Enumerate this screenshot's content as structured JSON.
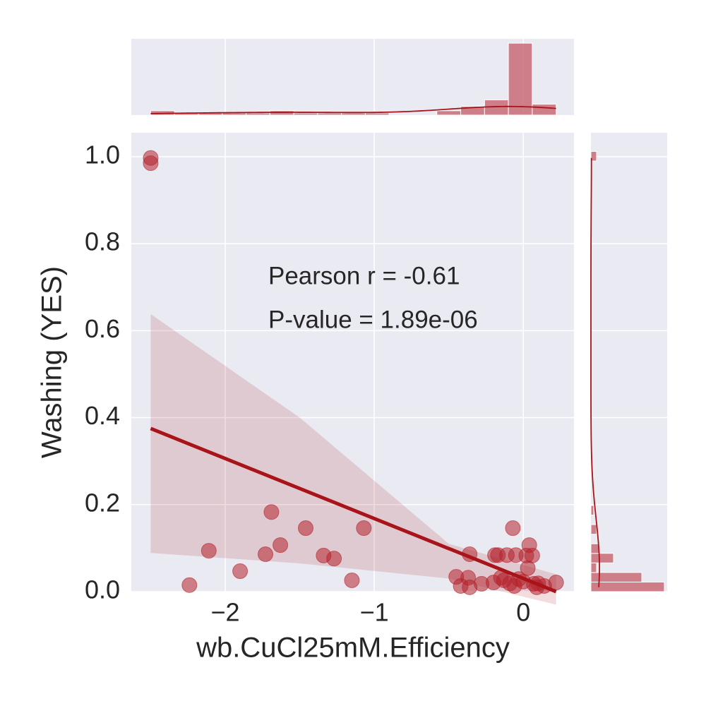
{
  "chart_data": [
    {
      "type": "scatter",
      "xlabel": "wb.CuCl25mM.Efficiency",
      "ylabel": "Washing (YES)",
      "annotations": [
        "Pearson r = -0.61",
        "P-value = 1.89e-06"
      ],
      "color": "#b5222b",
      "x": [
        -2.5,
        -2.5,
        -2.24,
        -2.11,
        -1.9,
        -1.69,
        -1.73,
        -1.63,
        -1.46,
        -1.34,
        -1.27,
        -1.15,
        -1.07,
        -0.36,
        -0.45,
        -0.42,
        -0.37,
        -0.36,
        -0.28,
        -0.17,
        -0.19,
        -0.11,
        -0.07,
        -0.05,
        0.04,
        0.02,
        0.06,
        0.03,
        -0.15,
        -0.13,
        -0.09,
        -0.03,
        0.0,
        0.07,
        0.1,
        0.22,
        -0.2,
        0.14,
        -0.06,
        0.09
      ],
      "values": [
        0.997,
        0.985,
        0.015,
        0.094,
        0.047,
        0.183,
        0.086,
        0.107,
        0.146,
        0.083,
        0.076,
        0.026,
        0.146,
        0.086,
        0.034,
        0.013,
        0.032,
        0.01,
        0.018,
        0.084,
        0.084,
        0.084,
        0.146,
        0.084,
        0.107,
        0.083,
        0.083,
        0.054,
        0.032,
        0.026,
        0.019,
        0.029,
        0.023,
        0.018,
        0.019,
        0.021,
        0.021,
        0.013,
        0.013,
        0.01
      ],
      "fit": {
        "color": "#a81419",
        "x": [
          -2.5,
          -1.5,
          -0.5,
          0.22
        ],
        "values": [
          0.375,
          0.237,
          0.099,
          0.0
        ],
        "ci_lower": [
          0.089,
          0.065,
          0.03,
          -0.03
        ],
        "ci_upper": [
          0.638,
          0.4,
          0.11,
          0.04
        ]
      },
      "xlim": [
        -2.63,
        0.34
      ],
      "ylim": [
        0,
        1.055
      ],
      "xticks": [
        {
          "value": -2,
          "label": "−2"
        },
        {
          "value": -1,
          "label": "−1"
        },
        {
          "value": 0,
          "label": "0"
        }
      ],
      "yticks": [
        {
          "value": 0,
          "label": "0.0"
        },
        0.2,
        0.4,
        0.6,
        0.8,
        {
          "value": 1,
          "label": "1.0"
        }
      ],
      "grid": true
    },
    {
      "type": "histogram",
      "orientation": "vertical",
      "color": "#c86b76",
      "kde_color": "#a81419",
      "bins": [
        -2.5,
        -2.34,
        -2.18,
        -2.02,
        -1.86,
        -1.7,
        -1.54,
        -1.38,
        -1.22,
        -1.06,
        -0.9,
        -0.74,
        -0.58,
        -0.42,
        -0.26,
        -0.1,
        0.06,
        0.22
      ],
      "counts": [
        2,
        1,
        1,
        1,
        1,
        2,
        1,
        1,
        1,
        1,
        0,
        0,
        2,
        4,
        7,
        33,
        5
      ],
      "ylim": [
        0,
        35
      ]
    },
    {
      "type": "histogram",
      "orientation": "horizontal",
      "color": "#c86b76",
      "kde_color": "#a81419",
      "bins": [
        0,
        0.022,
        0.044,
        0.066,
        0.088,
        0.11,
        0.132,
        0.154,
        0.176,
        0.198,
        0.22,
        0.242,
        0.264,
        0.286,
        0.308,
        0.33,
        0.352,
        0.374,
        0.396,
        0.418,
        0.44,
        0.462,
        0.484,
        0.506,
        0.528,
        0.55,
        0.572,
        0.594,
        0.616,
        0.638,
        0.66,
        0.682,
        0.704,
        0.726,
        0.748,
        0.77,
        0.792,
        0.814,
        0.836,
        0.858,
        0.88,
        0.902,
        0.924,
        0.946,
        0.968,
        0.99,
        1.012
      ],
      "counts": [
        26,
        18,
        2,
        8,
        3,
        0,
        2,
        0,
        1,
        0,
        0,
        0,
        0,
        0,
        0,
        0,
        0,
        0,
        0,
        0,
        0,
        0,
        0,
        0,
        0,
        0,
        0,
        0,
        0,
        0,
        0,
        0,
        0,
        0,
        0,
        0,
        0,
        0,
        0,
        0,
        0,
        0,
        0,
        0,
        0,
        2
      ],
      "xlim": [
        0,
        27
      ]
    }
  ]
}
